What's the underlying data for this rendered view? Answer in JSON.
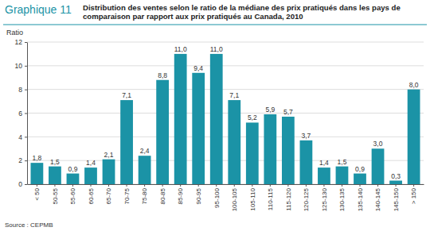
{
  "chart_data": {
    "type": "bar",
    "figure_label": "Graphique 11",
    "title": "Distribution des ventes selon le ratio de la médiane des prix pratiqués dans les pays de comparaison par rapport aux prix pratiqués au Canada, 2010",
    "ylabel": "Ratio",
    "source": "Source : CEPMB",
    "categories": [
      "< 50",
      "50-55",
      "55-60",
      "60-65",
      "65-70",
      "70-75",
      "75-80",
      "80-85",
      "85-90",
      "90-95",
      "95-100",
      "100-105",
      "105-110",
      "110-115",
      "115-120",
      "120-125",
      "125-130",
      "130-135",
      "135-140",
      "140-145",
      "145-150",
      "> 150"
    ],
    "values": [
      1.8,
      1.5,
      0.9,
      1.4,
      2.1,
      7.1,
      2.4,
      8.8,
      11.0,
      9.4,
      11.0,
      7.1,
      5.2,
      5.9,
      5.7,
      3.7,
      1.4,
      1.5,
      0.9,
      3.0,
      0.3,
      8.0
    ],
    "value_labels": [
      "1,8",
      "1,5",
      "0,9",
      "1,4",
      "2,1",
      "7,1",
      "2,4",
      "8,8",
      "11,0",
      "9,4",
      "11,0",
      "7,1",
      "5,2",
      "5,9",
      "5,7",
      "3,7",
      "1,4",
      "1,5",
      "0,9",
      "3,0",
      "0,3",
      "8,0"
    ],
    "color": "#1b93a6",
    "ylim": [
      0,
      12
    ],
    "yticks": [
      0,
      2,
      4,
      6,
      8,
      10,
      12
    ],
    "grid": true,
    "data_labels": true
  }
}
